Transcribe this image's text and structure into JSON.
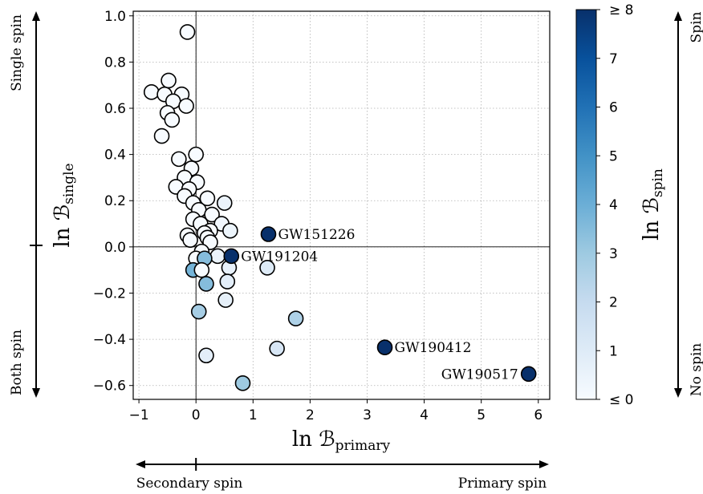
{
  "chart_data": {
    "type": "scatter",
    "xlabel": "ln ℬ",
    "xlabel_sub": "primary",
    "ylabel": "ln ℬ",
    "ylabel_sub": "single",
    "xlim": [
      -1.1,
      6.2
    ],
    "ylim": [
      -0.66,
      1.02
    ],
    "xticks": [
      -1,
      0,
      1,
      2,
      3,
      4,
      5,
      6
    ],
    "xtick_labels": [
      "−1",
      "0",
      "1",
      "2",
      "3",
      "4",
      "5",
      "6"
    ],
    "yticks": [
      -0.6,
      -0.4,
      -0.2,
      0.0,
      0.2,
      0.4,
      0.6,
      0.8,
      1.0
    ],
    "ytick_labels": [
      "−0.6",
      "−0.4",
      "−0.2",
      "0.0",
      "0.2",
      "0.4",
      "0.6",
      "0.8",
      "1.0"
    ],
    "grid": true,
    "reference_lines": {
      "x": 0,
      "y": 0
    },
    "colorbar": {
      "label": "ln ℬ",
      "label_sub": "spin",
      "min": 0,
      "max": 8,
      "ticks": [
        0,
        1,
        2,
        3,
        4,
        5,
        6,
        7,
        8
      ],
      "tick_labels": [
        "≤ 0",
        "1",
        "2",
        "3",
        "4",
        "5",
        "6",
        "7",
        "≥ 8"
      ],
      "colormap": [
        "#f7fbff",
        "#deebf7",
        "#c6dbef",
        "#9ecae1",
        "#6baed6",
        "#4292c6",
        "#2171b5",
        "#08519c",
        "#08306b"
      ]
    },
    "side_labels": {
      "y_top": "Single spin",
      "y_bottom": "Both spin",
      "x_left": "Secondary spin",
      "x_right": "Primary spin",
      "c_top": "Spin",
      "c_bottom": "No spin"
    },
    "points": [
      {
        "x": -0.15,
        "y": 0.93,
        "c": 0
      },
      {
        "x": -0.78,
        "y": 0.67,
        "c": 0
      },
      {
        "x": -0.55,
        "y": 0.66,
        "c": 0
      },
      {
        "x": -0.48,
        "y": 0.72,
        "c": 0
      },
      {
        "x": -0.25,
        "y": 0.66,
        "c": 0
      },
      {
        "x": -0.4,
        "y": 0.63,
        "c": 0
      },
      {
        "x": -0.17,
        "y": 0.61,
        "c": 0
      },
      {
        "x": -0.5,
        "y": 0.58,
        "c": 0
      },
      {
        "x": -0.42,
        "y": 0.55,
        "c": 0
      },
      {
        "x": -0.6,
        "y": 0.48,
        "c": 0
      },
      {
        "x": 0.0,
        "y": 0.4,
        "c": 0
      },
      {
        "x": -0.3,
        "y": 0.38,
        "c": 0
      },
      {
        "x": -0.08,
        "y": 0.34,
        "c": 0
      },
      {
        "x": -0.2,
        "y": 0.3,
        "c": 0
      },
      {
        "x": 0.02,
        "y": 0.28,
        "c": 0
      },
      {
        "x": -0.35,
        "y": 0.26,
        "c": 0
      },
      {
        "x": -0.12,
        "y": 0.25,
        "c": 0
      },
      {
        "x": -0.2,
        "y": 0.22,
        "c": 0
      },
      {
        "x": 0.2,
        "y": 0.21,
        "c": 0
      },
      {
        "x": 0.5,
        "y": 0.19,
        "c": 0.5
      },
      {
        "x": -0.05,
        "y": 0.19,
        "c": 0
      },
      {
        "x": 0.05,
        "y": 0.16,
        "c": 0
      },
      {
        "x": 0.28,
        "y": 0.14,
        "c": 0
      },
      {
        "x": -0.05,
        "y": 0.12,
        "c": 0
      },
      {
        "x": 0.08,
        "y": 0.1,
        "c": 0
      },
      {
        "x": 0.45,
        "y": 0.1,
        "c": 0.3
      },
      {
        "x": 0.25,
        "y": 0.07,
        "c": 0
      },
      {
        "x": 0.6,
        "y": 0.07,
        "c": 0.4
      },
      {
        "x": 0.15,
        "y": 0.06,
        "c": 0
      },
      {
        "x": -0.15,
        "y": 0.05,
        "c": 0
      },
      {
        "x": 0.2,
        "y": 0.04,
        "c": 0
      },
      {
        "x": -0.1,
        "y": 0.03,
        "c": 0
      },
      {
        "x": 0.25,
        "y": 0.02,
        "c": 0
      },
      {
        "x": 0.1,
        "y": -0.02,
        "c": 0
      },
      {
        "x": 0.0,
        "y": -0.05,
        "c": 0
      },
      {
        "x": 0.38,
        "y": -0.04,
        "c": 0.5
      },
      {
        "x": 0.58,
        "y": -0.09,
        "c": 0.6
      },
      {
        "x": 0.15,
        "y": -0.05,
        "c": 3.5
      },
      {
        "x": -0.05,
        "y": -0.1,
        "c": 3.8
      },
      {
        "x": 0.1,
        "y": -0.1,
        "c": 0
      },
      {
        "x": 0.55,
        "y": -0.15,
        "c": 0.8
      },
      {
        "x": 0.18,
        "y": -0.16,
        "c": 3.5
      },
      {
        "x": 1.25,
        "y": -0.09,
        "c": 1.0
      },
      {
        "x": 0.52,
        "y": -0.23,
        "c": 0.7
      },
      {
        "x": 0.05,
        "y": -0.28,
        "c": 2.8
      },
      {
        "x": 1.75,
        "y": -0.31,
        "c": 2.6
      },
      {
        "x": 1.42,
        "y": -0.44,
        "c": 1.3
      },
      {
        "x": 0.18,
        "y": -0.47,
        "c": 0.8
      },
      {
        "x": 0.82,
        "y": -0.59,
        "c": 3.0
      },
      {
        "x": 1.27,
        "y": 0.055,
        "c": 8,
        "label": "GW151226"
      },
      {
        "x": 0.62,
        "y": -0.04,
        "c": 8,
        "label": "GW191204"
      },
      {
        "x": 3.31,
        "y": -0.435,
        "c": 8,
        "label": "GW190412"
      },
      {
        "x": 5.83,
        "y": -0.55,
        "c": 8,
        "label": "GW190517"
      }
    ]
  }
}
